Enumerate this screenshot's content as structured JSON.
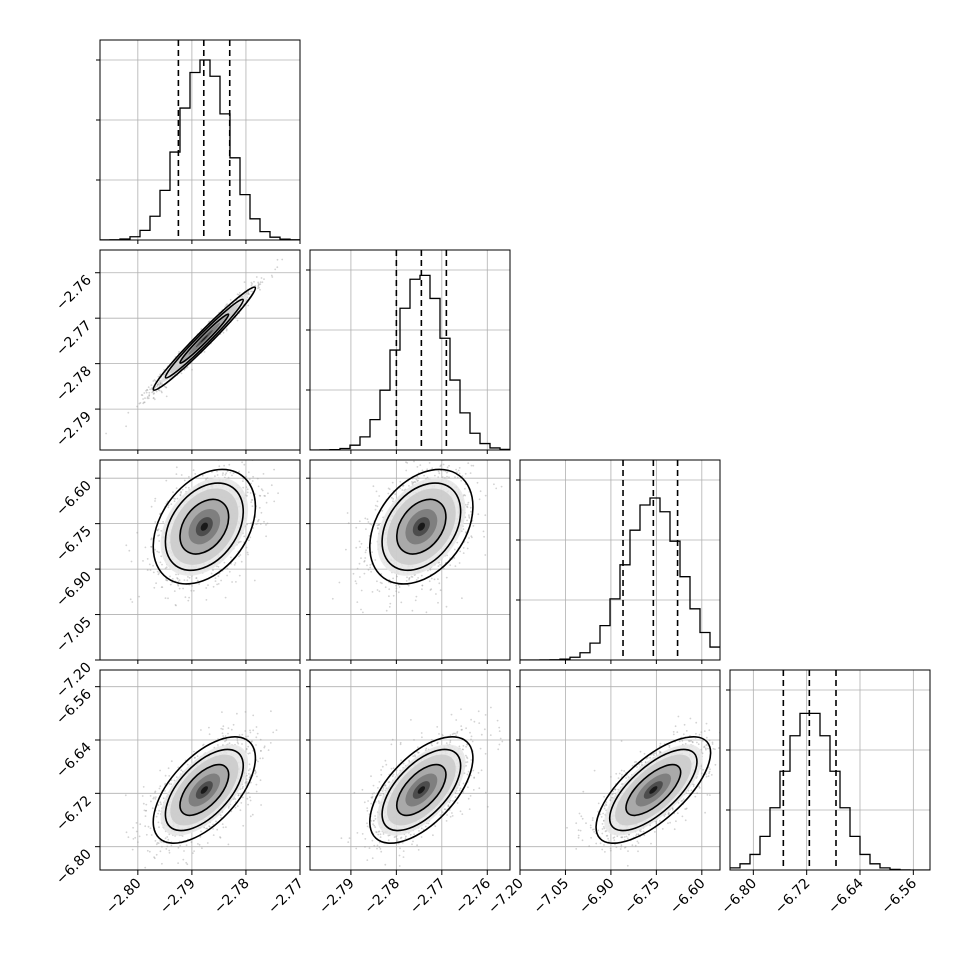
{
  "chart_data": {
    "type": "corner",
    "grid": true,
    "variables": [
      {
        "range": [
          -2.807,
          -2.77
        ],
        "ticks": [
          -2.8,
          -2.79,
          -2.78,
          -2.77
        ],
        "tick_labels": [
          "−2.80",
          "−2.79",
          "−2.78",
          "−2.77"
        ],
        "mean": -2.7877,
        "sd": 0.0045,
        "quantiles": [
          -2.7925,
          -2.7878,
          -2.783
        ],
        "hist_peak": 1.0
      },
      {
        "range": [
          -2.799,
          -2.755
        ],
        "ticks": [
          -2.79,
          -2.78,
          -2.77,
          -2.76
        ],
        "tick_labels": [
          "−2.79",
          "−2.78",
          "−2.77",
          "−2.76"
        ],
        "mean": -2.7745,
        "sd": 0.0054,
        "quantiles": [
          -2.78,
          -2.7745,
          -2.769
        ],
        "hist_peak": 0.97
      },
      {
        "range": [
          -7.2,
          -6.54
        ],
        "ticks": [
          -7.2,
          -7.05,
          -6.9,
          -6.75,
          -6.6
        ],
        "tick_labels": [
          "−7.20",
          "−7.05",
          "−6.90",
          "−6.75",
          "−6.60"
        ],
        "mean": -6.76,
        "sd": 0.09,
        "quantiles": [
          -6.86,
          -6.76,
          -6.68
        ],
        "hist_peak": 0.9
      },
      {
        "range": [
          -6.835,
          -6.535
        ],
        "ticks": [
          -6.8,
          -6.72,
          -6.64,
          -6.56
        ],
        "tick_labels": [
          "−6.80",
          "−6.72",
          "−6.64",
          "−6.56"
        ],
        "mean": -6.715,
        "sd": 0.038,
        "quantiles": [
          -6.755,
          -6.716,
          -6.676
        ],
        "hist_peak": 0.87
      }
    ],
    "pairs": [
      {
        "x_var": 0,
        "y_var": 1,
        "corr": 0.98
      },
      {
        "x_var": 0,
        "y_var": 2,
        "corr": 0.35
      },
      {
        "x_var": 1,
        "y_var": 2,
        "corr": 0.35
      },
      {
        "x_var": 0,
        "y_var": 3,
        "corr": 0.6
      },
      {
        "x_var": 1,
        "y_var": 3,
        "corr": 0.6
      },
      {
        "x_var": 2,
        "y_var": 3,
        "corr": 0.7
      }
    ],
    "contour_levels_sigma": [
      0.5,
      1.0,
      1.5
    ],
    "colors": {
      "line": "#000000",
      "points": "#9e9e9e",
      "grid": "#b0b0b0",
      "frame": "#000000"
    }
  }
}
